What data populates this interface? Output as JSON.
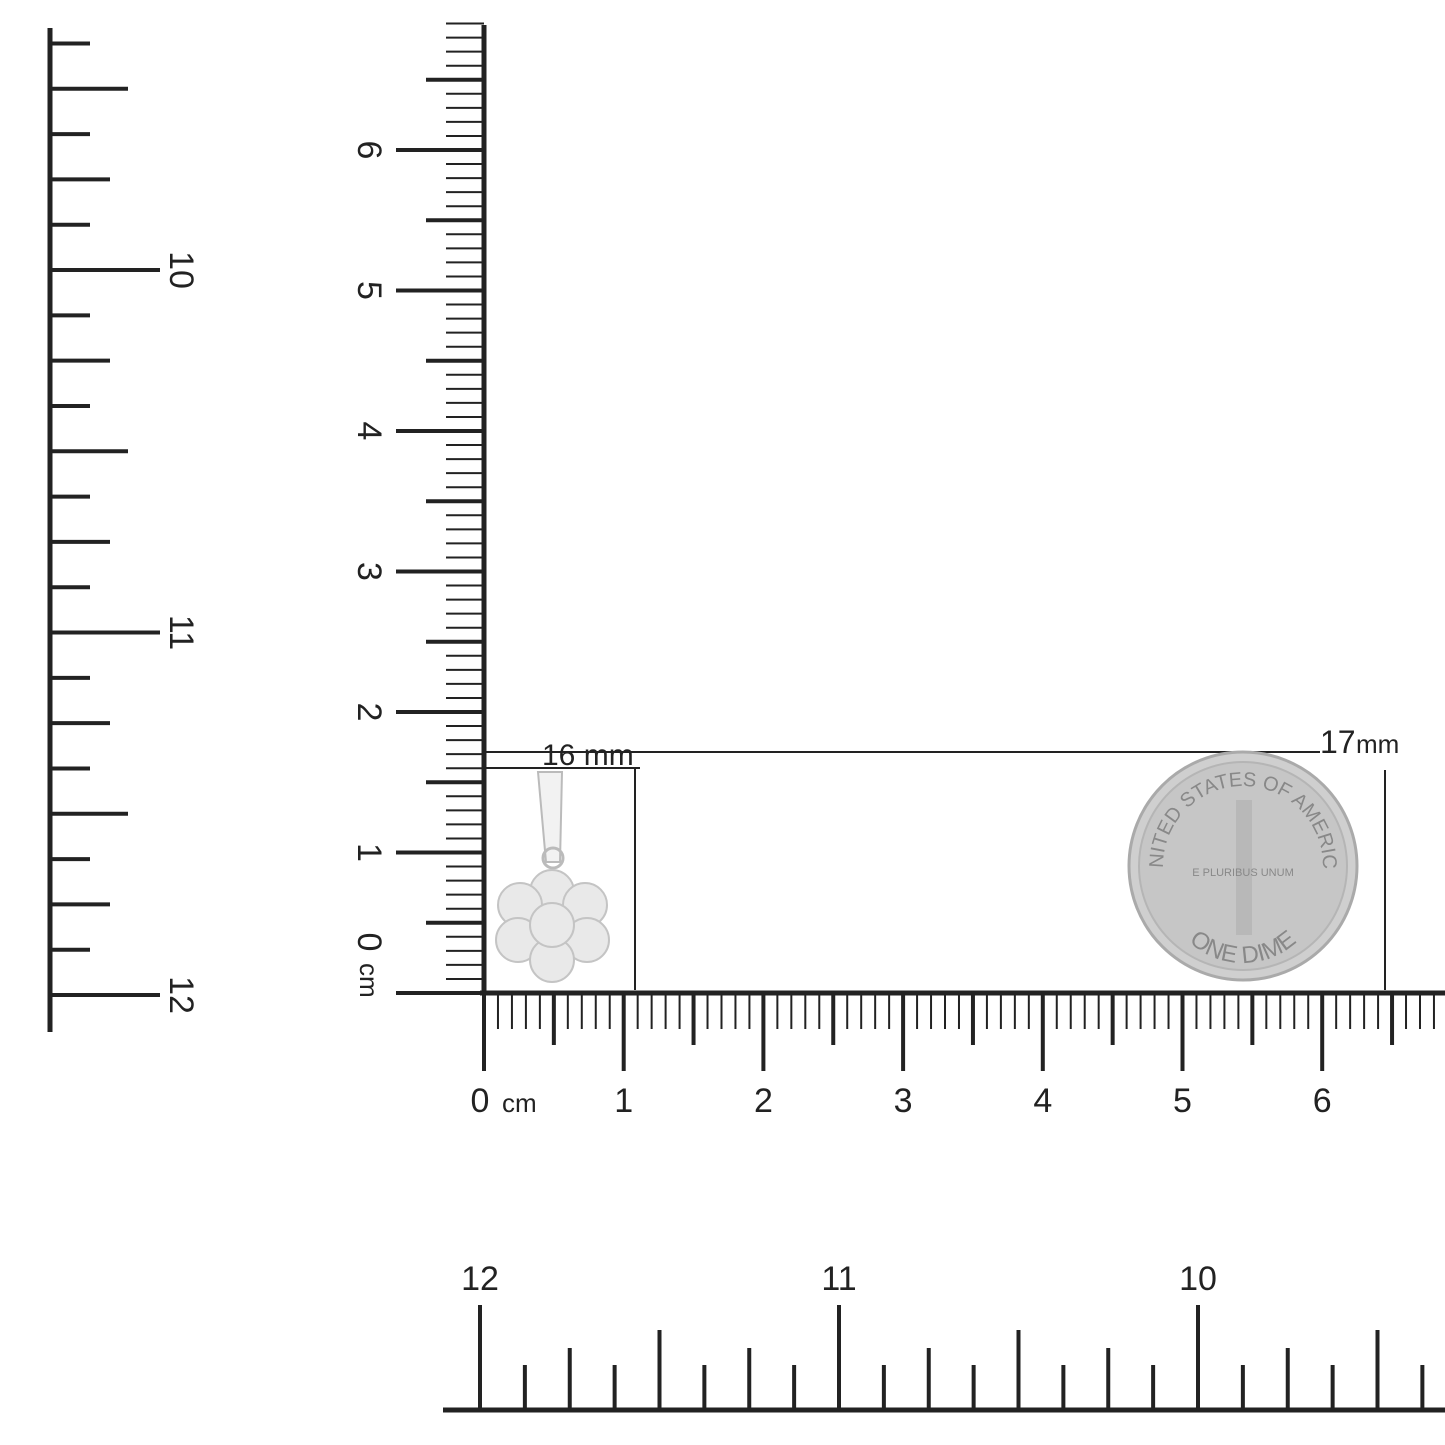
{
  "rulers": {
    "cm_horizontal": {
      "labels": [
        "0",
        "1",
        "2",
        "3",
        "4",
        "5",
        "6"
      ],
      "unit": "cm"
    },
    "cm_vertical": {
      "labels": [
        "0",
        "1",
        "2",
        "3",
        "4",
        "5",
        "6"
      ],
      "unit": "cm"
    },
    "inch_left": {
      "labels": [
        "10",
        "11",
        "12"
      ]
    },
    "inch_bottom": {
      "labels": [
        "12",
        "11",
        "10"
      ]
    }
  },
  "dimensions": {
    "pendant_label": "16 mm",
    "coin_label_num": "17",
    "coin_label_unit": "mm"
  },
  "coin": {
    "top_text": "UNITED STATES OF AMERICA",
    "bottom_text": "ONE DIME",
    "motto": "E PLURIBUS UNUM"
  },
  "colors": {
    "ink": "#222222",
    "coin": "#c9c9c9",
    "metal": "#e6e6e6"
  }
}
